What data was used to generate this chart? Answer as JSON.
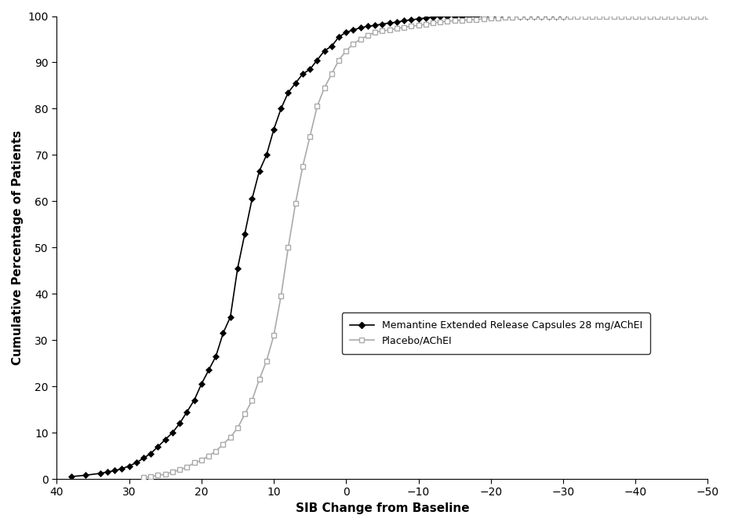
{
  "xlabel": "SIB Change from Baseline",
  "ylabel": "Cumulative Percentage of Patients",
  "xlim": [
    40,
    -50
  ],
  "ylim": [
    0,
    100
  ],
  "xticks": [
    40,
    30,
    20,
    10,
    0,
    -10,
    -20,
    -30,
    -40,
    -50
  ],
  "yticks": [
    0,
    10,
    20,
    30,
    40,
    50,
    60,
    70,
    80,
    90,
    100
  ],
  "memantine_color": "#000000",
  "placebo_color": "#aaaaaa",
  "background_color": "#ffffff",
  "legend_memantine": "Memantine Extended Release Capsules 28 mg/AChEI",
  "legend_placebo": "Placebo/AChEI",
  "memantine_x": [
    38,
    36,
    34,
    33,
    32,
    31,
    30,
    29,
    28,
    27,
    26,
    25,
    24,
    23,
    22,
    21,
    20,
    19,
    18,
    17,
    16,
    15,
    14,
    13,
    12,
    11,
    10,
    9,
    8,
    7,
    6,
    5,
    4,
    3,
    2,
    1,
    0,
    -1,
    -2,
    -3,
    -4,
    -5,
    -6,
    -7,
    -8,
    -9,
    -10,
    -11,
    -12,
    -13,
    -14,
    -15,
    -16,
    -17,
    -18,
    -19,
    -20,
    -21,
    -22,
    -23,
    -24,
    -25,
    -26,
    -27,
    -28,
    -29,
    -30
  ],
  "memantine_y": [
    0.5,
    0.8,
    1.2,
    1.5,
    1.8,
    2.2,
    2.8,
    3.5,
    4.5,
    5.5,
    7.0,
    8.5,
    10.0,
    12.0,
    14.5,
    17.0,
    20.5,
    23.5,
    26.5,
    31.5,
    35.0,
    45.5,
    53.0,
    60.5,
    66.5,
    70.0,
    75.5,
    80.0,
    83.5,
    85.5,
    87.5,
    88.5,
    90.5,
    92.5,
    93.5,
    95.5,
    96.5,
    97.0,
    97.5,
    97.8,
    98.0,
    98.3,
    98.5,
    98.7,
    99.0,
    99.2,
    99.4,
    99.6,
    99.8,
    100.0,
    100.0,
    100.0,
    100.0,
    100.0,
    100.0,
    100.0,
    100.0,
    100.0,
    100.0,
    100.0,
    100.0,
    100.0,
    100.0,
    100.0,
    100.0,
    100.0,
    100.0
  ],
  "placebo_x": [
    28,
    27,
    26,
    25,
    24,
    23,
    22,
    21,
    20,
    19,
    18,
    17,
    16,
    15,
    14,
    13,
    12,
    11,
    10,
    9,
    8,
    7,
    6,
    5,
    4,
    3,
    2,
    1,
    0,
    -1,
    -2,
    -3,
    -4,
    -5,
    -6,
    -7,
    -8,
    -9,
    -10,
    -11,
    -12,
    -13,
    -14,
    -15,
    -16,
    -17,
    -18,
    -19,
    -20,
    -21,
    -22,
    -23,
    -24,
    -25,
    -26,
    -27,
    -28,
    -29,
    -30,
    -31,
    -32,
    -33,
    -34,
    -35,
    -36,
    -37,
    -38,
    -39,
    -40,
    -41,
    -42,
    -43,
    -44,
    -45,
    -46,
    -47,
    -48,
    -49,
    -50
  ],
  "placebo_y": [
    0.3,
    0.5,
    0.8,
    1.0,
    1.5,
    2.0,
    2.5,
    3.5,
    4.0,
    5.0,
    6.0,
    7.5,
    9.0,
    11.0,
    14.0,
    17.0,
    21.5,
    25.5,
    31.0,
    39.5,
    50.0,
    59.5,
    67.5,
    74.0,
    80.5,
    84.5,
    87.5,
    90.5,
    92.5,
    94.0,
    95.0,
    95.8,
    96.5,
    96.8,
    97.0,
    97.3,
    97.6,
    97.8,
    98.0,
    98.2,
    98.5,
    98.7,
    98.9,
    99.0,
    99.1,
    99.2,
    99.3,
    99.4,
    99.5,
    99.6,
    99.7,
    99.8,
    99.9,
    99.95,
    100.0,
    100.0,
    100.0,
    100.0,
    100.0,
    100.0,
    100.0,
    100.0,
    100.0,
    100.0,
    100.0,
    100.0,
    100.0,
    100.0,
    100.0,
    100.0,
    100.0,
    100.0,
    100.0,
    100.0,
    100.0,
    100.0,
    100.0,
    100.0,
    100.0
  ]
}
